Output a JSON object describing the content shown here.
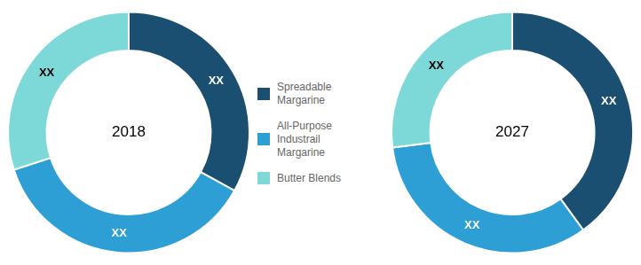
{
  "chart_data": [
    {
      "type": "doughnut",
      "annotations": [
        "2018"
      ],
      "categories": [
        "Spreadable\nMargarine",
        "All-Purpose\nIndustrail\nMargarine",
        "Butter Blends"
      ],
      "values": [
        33,
        37,
        30
      ],
      "value_labels": [
        "XX",
        "XX",
        "XX"
      ],
      "data_labels": true,
      "colors": [
        "#1b4f72",
        "#2e9fd4",
        "#7dd8d8"
      ],
      "legend": "right"
    },
    {
      "type": "doughnut",
      "annotations": [
        "2027"
      ],
      "categories": [
        "Spreadable\nMargarine",
        "All-Purpose\nIndustrail\nMargarine",
        "Butter Blends"
      ],
      "values": [
        40,
        33,
        27
      ],
      "value_labels": [
        "XX",
        "XX",
        "XX"
      ],
      "data_labels": true,
      "colors": [
        "#1b4f72",
        "#2e9fd4",
        "#7dd8d8"
      ]
    }
  ]
}
